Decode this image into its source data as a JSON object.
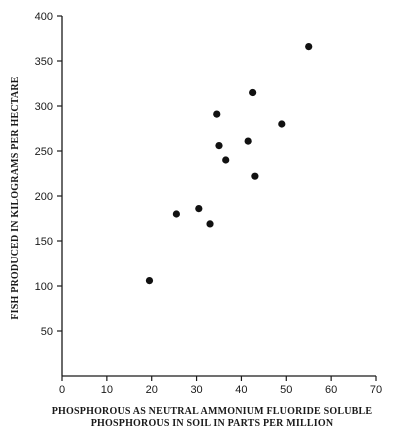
{
  "chart_data": {
    "type": "scatter",
    "title": "",
    "xlabel_lines": [
      "PHOSPHOROUS AS NEUTRAL AMMONIUM FLUORIDE SOLUBLE",
      "PHOSPHOROUS IN SOIL IN PARTS PER MILLION"
    ],
    "ylabel": "FISH PRODUCED IN KILOGRAMS PER HECTARE",
    "xlim": [
      0,
      70
    ],
    "ylim": [
      0,
      400
    ],
    "xticks": [
      0,
      10,
      20,
      30,
      40,
      50,
      60,
      70
    ],
    "yticks": [
      50,
      100,
      150,
      200,
      250,
      300,
      350,
      400
    ],
    "grid": false,
    "points": [
      {
        "x": 19.5,
        "y": 106
      },
      {
        "x": 25.5,
        "y": 180
      },
      {
        "x": 30.5,
        "y": 186
      },
      {
        "x": 33.0,
        "y": 169
      },
      {
        "x": 34.5,
        "y": 291
      },
      {
        "x": 35.0,
        "y": 256
      },
      {
        "x": 36.5,
        "y": 240
      },
      {
        "x": 41.5,
        "y": 261
      },
      {
        "x": 42.5,
        "y": 315
      },
      {
        "x": 43.0,
        "y": 222
      },
      {
        "x": 49.0,
        "y": 280
      },
      {
        "x": 55.0,
        "y": 366
      }
    ]
  }
}
